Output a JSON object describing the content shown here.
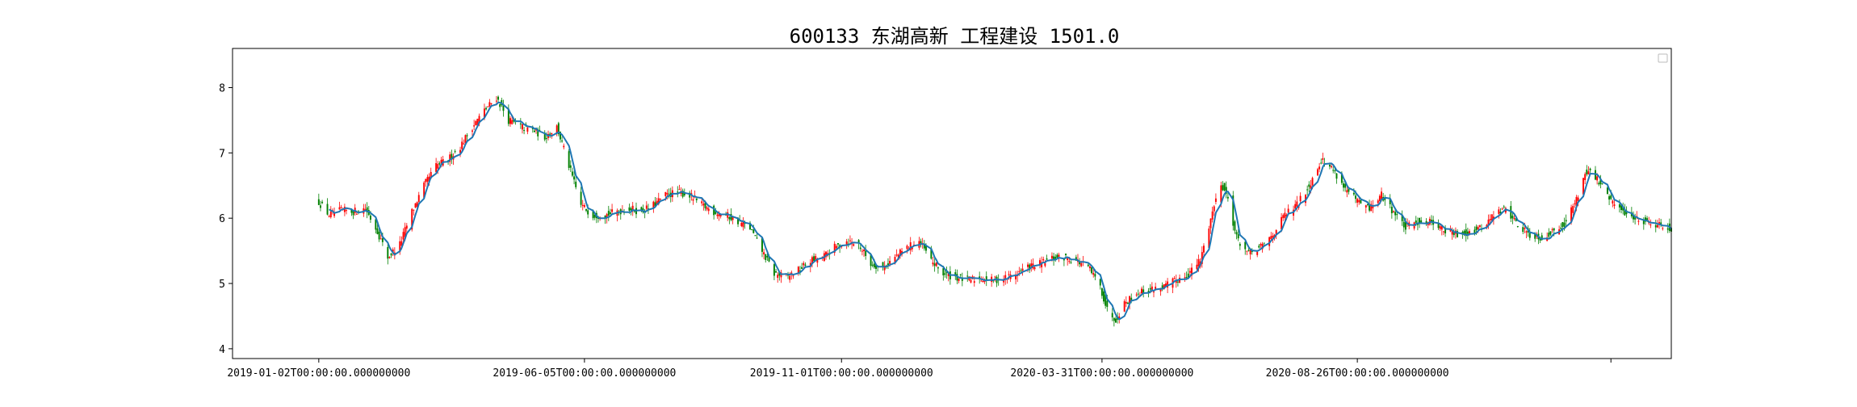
{
  "chart_data": {
    "type": "candlestick",
    "title": "600133 东湖高新 工程建设 1501.0",
    "xlabel": "",
    "ylabel": "",
    "ylim": [
      3.85,
      8.6
    ],
    "yticks": [
      4,
      5,
      6,
      7,
      8
    ],
    "x_range": [
      "2018-11-13",
      "2021-02-24"
    ],
    "xticks": [
      {
        "date": "2019-01-02",
        "label": "2019-01-02T00:00:00.000000000"
      },
      {
        "date": "2019-06-05",
        "label": "2019-06-05T00:00:00.000000000"
      },
      {
        "date": "2019-11-01",
        "label": "2019-11-01T00:00:00.000000000"
      },
      {
        "date": "2020-03-31",
        "label": "2020-03-31T00:00:00.000000000"
      },
      {
        "date": "2020-08-26",
        "label": "2020-08-26T00:00:00.000000000"
      },
      {
        "date": "2021-01-20",
        "label": ""
      }
    ],
    "grid": false,
    "legend": "top-right",
    "up_color": "#ff0000",
    "down_color": "#008000",
    "ma_color": "#1f77b4",
    "close_path": [
      [
        "2019-01-02",
        6.25
      ],
      [
        "2019-01-08",
        6.05
      ],
      [
        "2019-01-15",
        6.12
      ],
      [
        "2019-01-22",
        6.1
      ],
      [
        "2019-01-29",
        6.15
      ],
      [
        "2019-02-05",
        5.8
      ],
      [
        "2019-02-11",
        5.4
      ],
      [
        "2019-02-18",
        5.6
      ],
      [
        "2019-02-25",
        6.1
      ],
      [
        "2019-03-04",
        6.5
      ],
      [
        "2019-03-11",
        6.8
      ],
      [
        "2019-03-18",
        6.9
      ],
      [
        "2019-03-25",
        7.1
      ],
      [
        "2019-04-01",
        7.4
      ],
      [
        "2019-04-08",
        7.65
      ],
      [
        "2019-04-15",
        7.85
      ],
      [
        "2019-04-22",
        7.5
      ],
      [
        "2019-04-29",
        7.4
      ],
      [
        "2019-05-06",
        7.35
      ],
      [
        "2019-05-13",
        7.25
      ],
      [
        "2019-05-20",
        7.4
      ],
      [
        "2019-05-27",
        6.8
      ],
      [
        "2019-06-03",
        6.2
      ],
      [
        "2019-06-10",
        6.05
      ],
      [
        "2019-06-17",
        6.05
      ],
      [
        "2019-06-24",
        6.1
      ],
      [
        "2019-07-01",
        6.15
      ],
      [
        "2019-07-08",
        6.1
      ],
      [
        "2019-07-15",
        6.2
      ],
      [
        "2019-07-22",
        6.35
      ],
      [
        "2019-07-29",
        6.4
      ],
      [
        "2019-08-05",
        6.35
      ],
      [
        "2019-08-12",
        6.2
      ],
      [
        "2019-08-19",
        6.1
      ],
      [
        "2019-08-26",
        6.05
      ],
      [
        "2019-09-02",
        5.95
      ],
      [
        "2019-09-09",
        5.85
      ],
      [
        "2019-09-16",
        5.5
      ],
      [
        "2019-09-23",
        5.15
      ],
      [
        "2019-09-30",
        5.1
      ],
      [
        "2019-10-07",
        5.2
      ],
      [
        "2019-10-14",
        5.35
      ],
      [
        "2019-10-21",
        5.4
      ],
      [
        "2019-10-28",
        5.55
      ],
      [
        "2019-11-04",
        5.65
      ],
      [
        "2019-11-11",
        5.6
      ],
      [
        "2019-11-18",
        5.3
      ],
      [
        "2019-11-25",
        5.25
      ],
      [
        "2019-12-02",
        5.4
      ],
      [
        "2019-12-09",
        5.55
      ],
      [
        "2019-12-16",
        5.65
      ],
      [
        "2019-12-23",
        5.35
      ],
      [
        "2019-12-30",
        5.15
      ],
      [
        "2020-01-06",
        5.1
      ],
      [
        "2020-01-13",
        5.05
      ],
      [
        "2020-01-20",
        5.08
      ],
      [
        "2020-01-27",
        5.05
      ],
      [
        "2020-02-03",
        5.08
      ],
      [
        "2020-02-10",
        5.15
      ],
      [
        "2020-02-17",
        5.25
      ],
      [
        "2020-02-24",
        5.3
      ],
      [
        "2020-03-02",
        5.38
      ],
      [
        "2020-03-09",
        5.4
      ],
      [
        "2020-03-16",
        5.35
      ],
      [
        "2020-03-23",
        5.25
      ],
      [
        "2020-03-30",
        4.95
      ],
      [
        "2020-04-03",
        4.6
      ],
      [
        "2020-04-08",
        4.45
      ],
      [
        "2020-04-13",
        4.7
      ],
      [
        "2020-04-20",
        4.85
      ],
      [
        "2020-04-27",
        4.9
      ],
      [
        "2020-05-06",
        4.95
      ],
      [
        "2020-05-13",
        5.05
      ],
      [
        "2020-05-20",
        5.15
      ],
      [
        "2020-05-27",
        5.35
      ],
      [
        "2020-06-03",
        6.1
      ],
      [
        "2020-06-08",
        6.55
      ],
      [
        "2020-06-12",
        6.3
      ],
      [
        "2020-06-17",
        5.7
      ],
      [
        "2020-06-24",
        5.45
      ],
      [
        "2020-07-01",
        5.55
      ],
      [
        "2020-07-08",
        5.75
      ],
      [
        "2020-07-15",
        6.05
      ],
      [
        "2020-07-22",
        6.2
      ],
      [
        "2020-07-29",
        6.5
      ],
      [
        "2020-08-05",
        6.9
      ],
      [
        "2020-08-12",
        6.75
      ],
      [
        "2020-08-19",
        6.45
      ],
      [
        "2020-08-26",
        6.25
      ],
      [
        "2020-09-02",
        6.15
      ],
      [
        "2020-09-09",
        6.35
      ],
      [
        "2020-09-16",
        6.1
      ],
      [
        "2020-09-23",
        5.85
      ],
      [
        "2020-09-30",
        5.95
      ],
      [
        "2020-10-09",
        5.95
      ],
      [
        "2020-10-16",
        5.8
      ],
      [
        "2020-10-23",
        5.75
      ],
      [
        "2020-10-30",
        5.8
      ],
      [
        "2020-11-06",
        5.85
      ],
      [
        "2020-11-13",
        6.05
      ],
      [
        "2020-11-20",
        6.15
      ],
      [
        "2020-11-27",
        5.9
      ],
      [
        "2020-12-04",
        5.75
      ],
      [
        "2020-12-11",
        5.7
      ],
      [
        "2020-12-18",
        5.8
      ],
      [
        "2020-12-25",
        5.95
      ],
      [
        "2021-01-01",
        6.35
      ],
      [
        "2021-01-05",
        6.7
      ],
      [
        "2021-01-08",
        6.75
      ],
      [
        "2021-01-13",
        6.55
      ],
      [
        "2021-01-18",
        6.35
      ],
      [
        "2021-01-22",
        6.2
      ],
      [
        "2021-01-27",
        6.1
      ],
      [
        "2021-02-03",
        6.0
      ],
      [
        "2021-02-10",
        5.95
      ],
      [
        "2021-02-17",
        5.9
      ],
      [
        "2021-02-24",
        5.85
      ]
    ]
  }
}
